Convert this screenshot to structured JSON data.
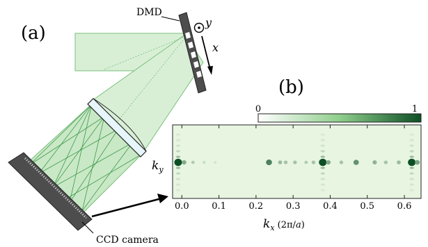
{
  "panels": {
    "a": "(a)",
    "b": "(b)"
  },
  "labels": {
    "dmd": "DMD",
    "ccd": "CCD camera",
    "axis_y": "y",
    "axis_x": "x"
  },
  "colorbar": {
    "min_label": "0",
    "max_label": "1",
    "colors": [
      "#ffffff",
      "#0d4f25"
    ]
  },
  "colors": {
    "beam_fill": "#d8efd6",
    "beam_edge": "#78bf78",
    "lens_fill": "#e6f6fb",
    "device": "#4d4d4d",
    "heatmap_bg": "#e7f5e1",
    "peak": "#0d5a2a"
  },
  "chart_data": {
    "type": "heatmap",
    "xlabel": "k_x (2π/a)",
    "ylabel": "k_y",
    "xlim": [
      -0.025,
      0.645
    ],
    "x_ticks": [
      "0.0",
      "0.1",
      "0.2",
      "0.3",
      "0.4",
      "0.5",
      "0.6"
    ],
    "grid": false,
    "peaks": [
      {
        "kx": -0.01,
        "intensity": 1.0
      },
      {
        "kx": 0.006,
        "intensity": 0.45
      },
      {
        "kx": 0.03,
        "intensity": 0.25
      },
      {
        "kx": 0.06,
        "intensity": 0.15
      },
      {
        "kx": 0.09,
        "intensity": 0.1
      },
      {
        "kx": 0.235,
        "intensity": 0.7
      },
      {
        "kx": 0.265,
        "intensity": 0.35
      },
      {
        "kx": 0.28,
        "intensity": 0.3
      },
      {
        "kx": 0.305,
        "intensity": 0.3
      },
      {
        "kx": 0.335,
        "intensity": 0.25
      },
      {
        "kx": 0.355,
        "intensity": 0.3
      },
      {
        "kx": 0.38,
        "intensity": 1.0
      },
      {
        "kx": 0.395,
        "intensity": 0.45
      },
      {
        "kx": 0.43,
        "intensity": 0.3
      },
      {
        "kx": 0.47,
        "intensity": 0.6
      },
      {
        "kx": 0.52,
        "intensity": 0.4
      },
      {
        "kx": 0.55,
        "intensity": 0.3
      },
      {
        "kx": 0.585,
        "intensity": 0.35
      },
      {
        "kx": 0.62,
        "intensity": 1.0
      },
      {
        "kx": 0.635,
        "intensity": 0.5
      }
    ]
  }
}
